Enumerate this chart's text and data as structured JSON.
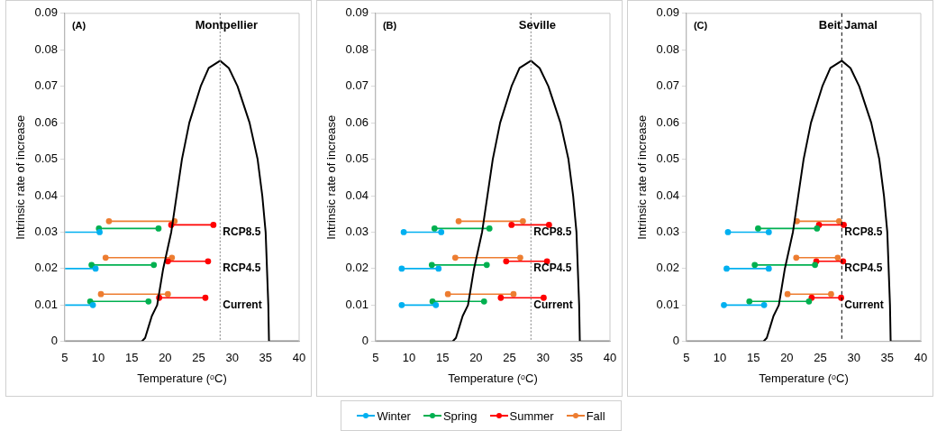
{
  "chart_data": [
    {
      "type": "line",
      "title": "Montpellier",
      "xlabel": "Temperature (ᵒC)",
      "ylabel": "Intrinsic rate of increase",
      "xlim": [
        5,
        40
      ],
      "xticks": [
        5,
        10,
        15,
        20,
        25,
        30,
        35,
        40
      ],
      "ylim": [
        0,
        0.09
      ],
      "yticks": [
        0,
        0.01,
        0.02,
        0.03,
        0.04,
        0.05,
        0.06,
        0.07,
        0.08,
        0.09
      ],
      "grid": false,
      "legend": "bottom",
      "marker": "circle",
      "annotations": [
        "(A)",
        "Current",
        "RCP4.5",
        "RCP8.5"
      ],
      "ref_lines": [
        {
          "axis": "x",
          "value": 28.2,
          "color": "#808080",
          "line_style": "dotted"
        }
      ],
      "series": [
        {
          "type": "line",
          "color": "#000000",
          "marker": "none",
          "x": [
            5,
            16.5,
            17,
            17.5,
            18,
            18.8,
            19.7,
            20.9,
            21.7,
            22.5,
            23.6,
            25.3,
            26.5,
            28.2,
            29.5,
            30.8,
            32.6,
            33.8,
            34.5,
            35,
            35.4,
            35.5,
            40
          ],
          "values": [
            0,
            0,
            0.001,
            0.004,
            0.007,
            0.01,
            0.02,
            0.03,
            0.04,
            0.05,
            0.06,
            0.07,
            0.075,
            0.077,
            0.075,
            0.07,
            0.06,
            0.05,
            0.04,
            0.03,
            0.01,
            0,
            0
          ]
        },
        {
          "name": "Winter",
          "color": "#00b0f0",
          "x": [
            5,
            9.2
          ],
          "values": [
            0.01,
            0.01
          ]
        },
        {
          "name": "Spring",
          "color": "#00b050",
          "x": [
            8.8,
            17.5
          ],
          "values": [
            0.011,
            0.011
          ]
        },
        {
          "name": "Summer",
          "color": "#ff0000",
          "x": [
            19.1,
            26.0
          ],
          "values": [
            0.012,
            0.012
          ]
        },
        {
          "name": "Fall",
          "color": "#ed7d31",
          "x": [
            10.4,
            20.4
          ],
          "values": [
            0.013,
            0.013
          ]
        },
        {
          "color": "#00b0f0",
          "x": [
            5,
            9.6
          ],
          "values": [
            0.02,
            0.02
          ]
        },
        {
          "color": "#00b050",
          "x": [
            9.0,
            18.3
          ],
          "values": [
            0.021,
            0.021
          ]
        },
        {
          "color": "#ff0000",
          "x": [
            20.4,
            26.4
          ],
          "values": [
            0.022,
            0.022
          ]
        },
        {
          "color": "#ed7d31",
          "x": [
            11.1,
            21.0
          ],
          "values": [
            0.023,
            0.023
          ]
        },
        {
          "color": "#00b0f0",
          "x": [
            5,
            10.2
          ],
          "values": [
            0.03,
            0.03
          ]
        },
        {
          "color": "#00b050",
          "x": [
            10.1,
            19.0
          ],
          "values": [
            0.031,
            0.031
          ]
        },
        {
          "color": "#ff0000",
          "x": [
            20.9,
            27.2
          ],
          "values": [
            0.032,
            0.032
          ]
        },
        {
          "color": "#ed7d31",
          "x": [
            11.6,
            21.4
          ],
          "values": [
            0.033,
            0.033
          ]
        }
      ]
    },
    {
      "type": "line",
      "title": "Seville",
      "xlabel": "Temperature (ᵒC)",
      "ylabel": "Intrinsic rate of increase",
      "xlim": [
        5,
        40
      ],
      "xticks": [
        5,
        10,
        15,
        20,
        25,
        30,
        35,
        40
      ],
      "ylim": [
        0,
        0.09
      ],
      "yticks": [
        0,
        0.01,
        0.02,
        0.03,
        0.04,
        0.05,
        0.06,
        0.07,
        0.08,
        0.09
      ],
      "grid": false,
      "legend": "bottom",
      "marker": "circle",
      "annotations": [
        "(B)",
        "Current",
        "RCP4.5",
        "RCP8.5"
      ],
      "ref_lines": [
        {
          "axis": "x",
          "value": 28.2,
          "color": "#808080",
          "line_style": "dotted"
        }
      ],
      "series": [
        {
          "type": "line",
          "color": "#000000",
          "marker": "none",
          "x": [
            5,
            16.5,
            17,
            17.5,
            18,
            18.8,
            19.7,
            20.9,
            21.7,
            22.5,
            23.6,
            25.3,
            26.5,
            28.2,
            29.5,
            30.8,
            32.6,
            33.8,
            34.5,
            35,
            35.4,
            35.5,
            40
          ],
          "values": [
            0,
            0,
            0.001,
            0.004,
            0.007,
            0.01,
            0.02,
            0.03,
            0.04,
            0.05,
            0.06,
            0.07,
            0.075,
            0.077,
            0.075,
            0.07,
            0.06,
            0.05,
            0.04,
            0.03,
            0.01,
            0,
            0
          ]
        },
        {
          "color": "#00b0f0",
          "x": [
            8.9,
            14.0
          ],
          "values": [
            0.01,
            0.01
          ]
        },
        {
          "color": "#00b050",
          "x": [
            13.5,
            21.2
          ],
          "values": [
            0.011,
            0.011
          ]
        },
        {
          "color": "#ff0000",
          "x": [
            23.7,
            30.1
          ],
          "values": [
            0.012,
            0.012
          ]
        },
        {
          "color": "#ed7d31",
          "x": [
            15.8,
            25.6
          ],
          "values": [
            0.013,
            0.013
          ]
        },
        {
          "color": "#00b0f0",
          "x": [
            8.9,
            14.4
          ],
          "values": [
            0.02,
            0.02
          ]
        },
        {
          "color": "#00b050",
          "x": [
            13.4,
            21.6
          ],
          "values": [
            0.021,
            0.021
          ]
        },
        {
          "color": "#ff0000",
          "x": [
            24.5,
            30.6
          ],
          "values": [
            0.022,
            0.022
          ]
        },
        {
          "color": "#ed7d31",
          "x": [
            16.9,
            26.6
          ],
          "values": [
            0.023,
            0.023
          ]
        },
        {
          "color": "#00b0f0",
          "x": [
            9.2,
            14.8
          ],
          "values": [
            0.03,
            0.03
          ]
        },
        {
          "color": "#00b050",
          "x": [
            13.8,
            22.0
          ],
          "values": [
            0.031,
            0.031
          ]
        },
        {
          "color": "#ff0000",
          "x": [
            25.3,
            30.9
          ],
          "values": [
            0.032,
            0.032
          ]
        },
        {
          "color": "#ed7d31",
          "x": [
            17.4,
            27.0
          ],
          "values": [
            0.033,
            0.033
          ]
        }
      ]
    },
    {
      "type": "line",
      "title": "Beit Jamal",
      "xlabel": "Temperature (ᵒC)",
      "ylabel": "Intrinsic rate of increase",
      "xlim": [
        5,
        40
      ],
      "xticks": [
        5,
        10,
        15,
        20,
        25,
        30,
        35,
        40
      ],
      "ylim": [
        0,
        0.09
      ],
      "yticks": [
        0,
        0.01,
        0.02,
        0.03,
        0.04,
        0.05,
        0.06,
        0.07,
        0.08,
        0.09
      ],
      "grid": false,
      "legend": "bottom",
      "marker": "circle",
      "annotations": [
        "(C)",
        "Current",
        "RCP4.5",
        "RCP8.5"
      ],
      "ref_lines": [
        {
          "axis": "x",
          "value": 28.2,
          "color": "#000000",
          "line_style": "dashed"
        }
      ],
      "series": [
        {
          "type": "line",
          "color": "#000000",
          "marker": "none",
          "x": [
            5,
            16.5,
            17,
            17.5,
            18,
            18.8,
            19.7,
            20.9,
            21.7,
            22.5,
            23.6,
            25.3,
            26.5,
            28.2,
            29.5,
            30.8,
            32.6,
            33.8,
            34.5,
            35,
            35.4,
            35.5,
            40
          ],
          "values": [
            0,
            0,
            0.001,
            0.004,
            0.007,
            0.01,
            0.02,
            0.03,
            0.04,
            0.05,
            0.06,
            0.07,
            0.075,
            0.077,
            0.075,
            0.07,
            0.06,
            0.05,
            0.04,
            0.03,
            0.01,
            0,
            0
          ]
        },
        {
          "color": "#00b0f0",
          "x": [
            10.6,
            16.6
          ],
          "values": [
            0.01,
            0.01
          ]
        },
        {
          "color": "#00b050",
          "x": [
            14.4,
            23.3
          ],
          "values": [
            0.011,
            0.011
          ]
        },
        {
          "color": "#ff0000",
          "x": [
            23.7,
            28.1
          ],
          "values": [
            0.012,
            0.012
          ]
        },
        {
          "color": "#ed7d31",
          "x": [
            20.1,
            26.6
          ],
          "values": [
            0.013,
            0.013
          ]
        },
        {
          "color": "#00b0f0",
          "x": [
            11.0,
            17.3
          ],
          "values": [
            0.02,
            0.02
          ]
        },
        {
          "color": "#00b050",
          "x": [
            15.2,
            24.2
          ],
          "values": [
            0.021,
            0.021
          ]
        },
        {
          "color": "#ff0000",
          "x": [
            24.4,
            28.4
          ],
          "values": [
            0.022,
            0.022
          ]
        },
        {
          "color": "#ed7d31",
          "x": [
            21.4,
            27.6
          ],
          "values": [
            0.023,
            0.023
          ]
        },
        {
          "color": "#00b0f0",
          "x": [
            11.2,
            17.3
          ],
          "values": [
            0.03,
            0.03
          ]
        },
        {
          "color": "#00b050",
          "x": [
            15.7,
            24.5
          ],
          "values": [
            0.031,
            0.031
          ]
        },
        {
          "color": "#ff0000",
          "x": [
            24.8,
            28.5
          ],
          "values": [
            0.032,
            0.032
          ]
        },
        {
          "color": "#ed7d31",
          "x": [
            21.5,
            27.8
          ],
          "values": [
            0.033,
            0.033
          ]
        }
      ]
    }
  ]
}
